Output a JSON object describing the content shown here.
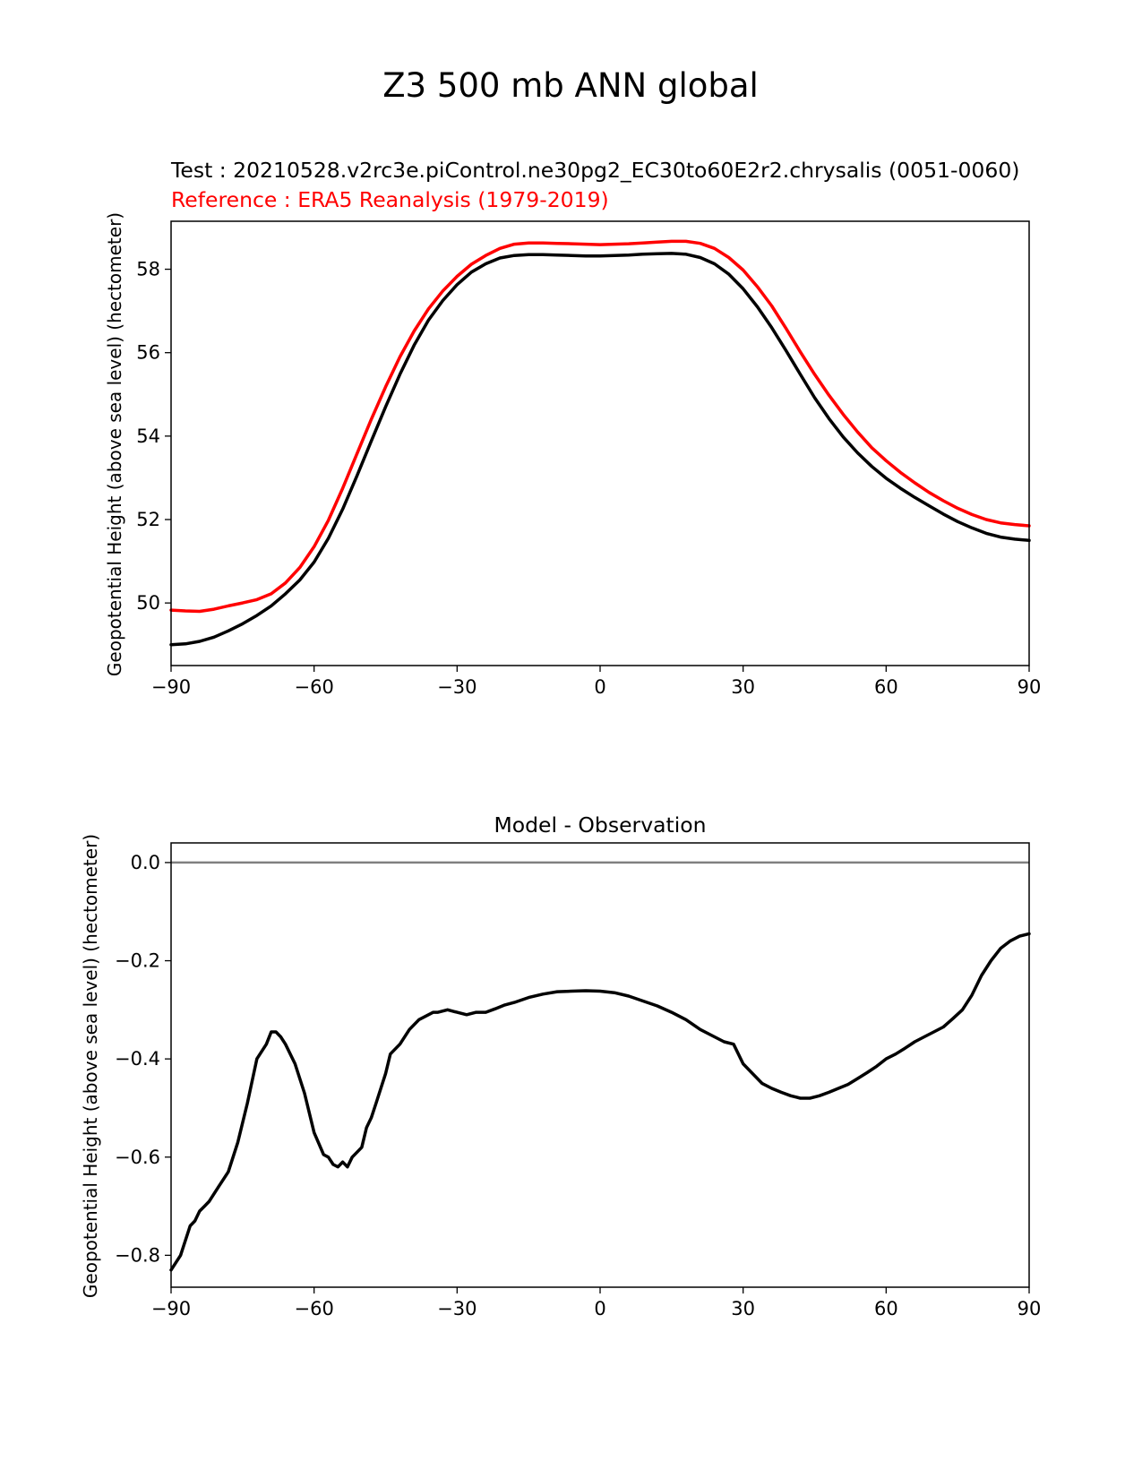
{
  "figure_title": "Z3 500 mb ANN global",
  "colors": {
    "test": "#000000",
    "reference": "#ff0000",
    "zero_line": "#808080",
    "axes": "#000000"
  },
  "chart_data": [
    {
      "type": "line",
      "title_test": "Test : 20210528.v2rc3e.piControl.ne30pg2_EC30to60E2r2.chrysalis (0051-0060)",
      "title_reference": "Reference : ERA5 Reanalysis (1979-2019)",
      "xlabel": "",
      "ylabel": "Geopotential Height (above sea level) (hectometer)",
      "xlim": [
        -90,
        90
      ],
      "ylim": [
        48.5,
        59.15
      ],
      "xticks": [
        -90,
        -60,
        -30,
        0,
        30,
        60,
        90
      ],
      "xtick_labels": [
        "−90",
        "−60",
        "−30",
        "0",
        "30",
        "60",
        "90"
      ],
      "yticks": [
        50,
        52,
        54,
        56,
        58
      ],
      "ytick_labels": [
        "50",
        "52",
        "54",
        "56",
        "58"
      ],
      "series": [
        {
          "name": "Test",
          "color": "#000000",
          "x": [
            -90,
            -87,
            -84,
            -81,
            -78,
            -75,
            -72,
            -69,
            -66,
            -63,
            -60,
            -57,
            -54,
            -51,
            -48,
            -45,
            -42,
            -39,
            -36,
            -33,
            -30,
            -27,
            -24,
            -21,
            -18,
            -15,
            -12,
            -9,
            -6,
            -3,
            0,
            3,
            6,
            9,
            12,
            15,
            18,
            21,
            24,
            27,
            30,
            33,
            36,
            39,
            42,
            45,
            48,
            51,
            54,
            57,
            60,
            63,
            66,
            69,
            72,
            75,
            78,
            81,
            84,
            87,
            90
          ],
          "values": [
            49.0,
            49.02,
            49.08,
            49.18,
            49.33,
            49.5,
            49.7,
            49.93,
            50.22,
            50.55,
            50.98,
            51.55,
            52.25,
            53.05,
            53.88,
            54.7,
            55.48,
            56.18,
            56.78,
            57.25,
            57.63,
            57.93,
            58.13,
            58.27,
            58.33,
            58.35,
            58.35,
            58.34,
            58.33,
            58.32,
            58.32,
            58.33,
            58.34,
            58.36,
            58.37,
            58.38,
            58.36,
            58.28,
            58.13,
            57.88,
            57.53,
            57.1,
            56.6,
            56.05,
            55.48,
            54.92,
            54.42,
            53.98,
            53.6,
            53.27,
            52.99,
            52.75,
            52.53,
            52.33,
            52.13,
            51.95,
            51.8,
            51.67,
            51.58,
            51.53,
            51.5
          ]
        },
        {
          "name": "Reference",
          "color": "#ff0000",
          "x": [
            -90,
            -87,
            -84,
            -81,
            -78,
            -75,
            -72,
            -69,
            -66,
            -63,
            -60,
            -57,
            -54,
            -51,
            -48,
            -45,
            -42,
            -39,
            -36,
            -33,
            -30,
            -27,
            -24,
            -21,
            -18,
            -15,
            -12,
            -9,
            -6,
            -3,
            0,
            3,
            6,
            9,
            12,
            15,
            18,
            21,
            24,
            27,
            30,
            33,
            36,
            39,
            42,
            45,
            48,
            51,
            54,
            57,
            60,
            63,
            66,
            69,
            72,
            75,
            78,
            81,
            84,
            87,
            90
          ],
          "values": [
            49.83,
            49.81,
            49.8,
            49.85,
            49.93,
            50.0,
            50.08,
            50.22,
            50.48,
            50.85,
            51.35,
            51.98,
            52.75,
            53.58,
            54.4,
            55.18,
            55.9,
            56.52,
            57.05,
            57.48,
            57.83,
            58.12,
            58.33,
            58.5,
            58.6,
            58.63,
            58.63,
            58.62,
            58.61,
            58.6,
            58.59,
            58.6,
            58.61,
            58.63,
            58.65,
            58.67,
            58.67,
            58.62,
            58.5,
            58.28,
            57.98,
            57.58,
            57.12,
            56.58,
            56.02,
            55.48,
            54.98,
            54.52,
            54.1,
            53.72,
            53.41,
            53.13,
            52.88,
            52.65,
            52.45,
            52.27,
            52.12,
            52.0,
            51.92,
            51.88,
            51.85
          ]
        }
      ]
    },
    {
      "type": "line",
      "title": "Model - Observation",
      "xlabel": "",
      "ylabel": "Geopotential Height (above sea level) (hectometer)",
      "xlim": [
        -90,
        90
      ],
      "ylim": [
        -0.865,
        0.04
      ],
      "xticks": [
        -90,
        -60,
        -30,
        0,
        30,
        60,
        90
      ],
      "xtick_labels": [
        "−90",
        "−60",
        "−30",
        "0",
        "30",
        "60",
        "90"
      ],
      "yticks": [
        0.0,
        -0.2,
        -0.4,
        -0.6,
        -0.8
      ],
      "ytick_labels": [
        "0.0",
        "−0.2",
        "−0.4",
        "−0.6",
        "−0.8"
      ],
      "zero_line": 0.0,
      "series": [
        {
          "name": "Model - Observation",
          "color": "#000000",
          "x": [
            -90,
            -88,
            -86,
            -85,
            -84,
            -83,
            -82,
            -80,
            -78,
            -76,
            -74,
            -72,
            -70,
            -69,
            -68,
            -67,
            -66,
            -64,
            -62,
            -60,
            -58,
            -57,
            -56,
            -55,
            -54,
            -53,
            -52,
            -51,
            -50,
            -49,
            -48,
            -47,
            -46,
            -45,
            -44,
            -42,
            -40,
            -38,
            -36,
            -35,
            -34,
            -32,
            -30,
            -28,
            -26,
            -24,
            -22,
            -20,
            -18,
            -15,
            -12,
            -9,
            -6,
            -3,
            0,
            3,
            6,
            9,
            12,
            15,
            18,
            21,
            24,
            26,
            28,
            30,
            32,
            34,
            36,
            38,
            40,
            42,
            44,
            46,
            48,
            50,
            52,
            54,
            56,
            58,
            60,
            62,
            64,
            66,
            68,
            70,
            72,
            74,
            76,
            78,
            80,
            82,
            84,
            86,
            88,
            90
          ],
          "values": [
            -0.83,
            -0.8,
            -0.74,
            -0.73,
            -0.71,
            -0.7,
            -0.69,
            -0.66,
            -0.63,
            -0.57,
            -0.49,
            -0.4,
            -0.37,
            -0.345,
            -0.345,
            -0.355,
            -0.37,
            -0.41,
            -0.47,
            -0.55,
            -0.595,
            -0.6,
            -0.615,
            -0.62,
            -0.61,
            -0.62,
            -0.6,
            -0.59,
            -0.58,
            -0.54,
            -0.52,
            -0.49,
            -0.46,
            -0.43,
            -0.39,
            -0.37,
            -0.34,
            -0.32,
            -0.31,
            -0.305,
            -0.305,
            -0.3,
            -0.305,
            -0.31,
            -0.305,
            -0.305,
            -0.298,
            -0.29,
            -0.285,
            -0.275,
            -0.268,
            -0.263,
            -0.262,
            -0.261,
            -0.262,
            -0.265,
            -0.272,
            -0.282,
            -0.292,
            -0.305,
            -0.32,
            -0.34,
            -0.355,
            -0.365,
            -0.37,
            -0.41,
            -0.43,
            -0.45,
            -0.46,
            -0.468,
            -0.475,
            -0.48,
            -0.48,
            -0.475,
            -0.468,
            -0.46,
            -0.452,
            -0.44,
            -0.428,
            -0.415,
            -0.4,
            -0.39,
            -0.378,
            -0.365,
            -0.355,
            -0.345,
            -0.335,
            -0.318,
            -0.3,
            -0.27,
            -0.23,
            -0.2,
            -0.175,
            -0.16,
            -0.15,
            -0.145
          ]
        }
      ]
    }
  ]
}
